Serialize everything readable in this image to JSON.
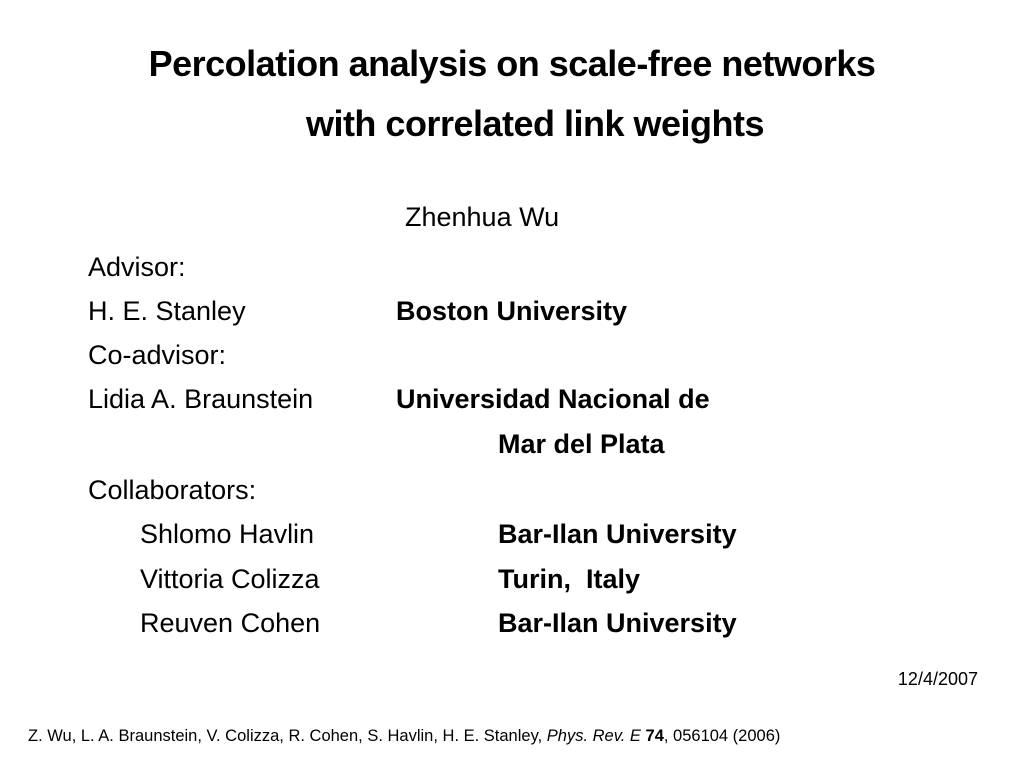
{
  "title": {
    "lines": [
      "Percolation analysis on scale-free networks",
      "with correlated link weights"
    ]
  },
  "author": "Zhenhua Wu",
  "advisors": [
    {
      "role": "Advisor:",
      "name": "H. E. Stanley",
      "affiliation": [
        "Boston University"
      ]
    },
    {
      "role": "Co-advisor:",
      "name": "Lidia A. Braunstein",
      "affiliation": [
        "Universidad Nacional de",
        "Mar del Plata"
      ]
    }
  ],
  "collaborators": {
    "label": "Collaborators:",
    "people": [
      {
        "name": "Shlomo Havlin",
        "affiliation": "Bar-Ilan University"
      },
      {
        "name": "Vittoria Colizza",
        "affiliation": "Turin,  Italy"
      },
      {
        "name": "Reuven Cohen",
        "affiliation": "Bar-Ilan University"
      }
    ]
  },
  "date": "12/4/2007",
  "citation": {
    "authors": "Z. Wu, L. A. Braunstein, V. Colizza, R. Cohen, S. Havlin, H. E. Stanley, ",
    "journal": "Phys. Rev. E",
    "volume": "74",
    "rest": ", 056104 (2006)"
  }
}
